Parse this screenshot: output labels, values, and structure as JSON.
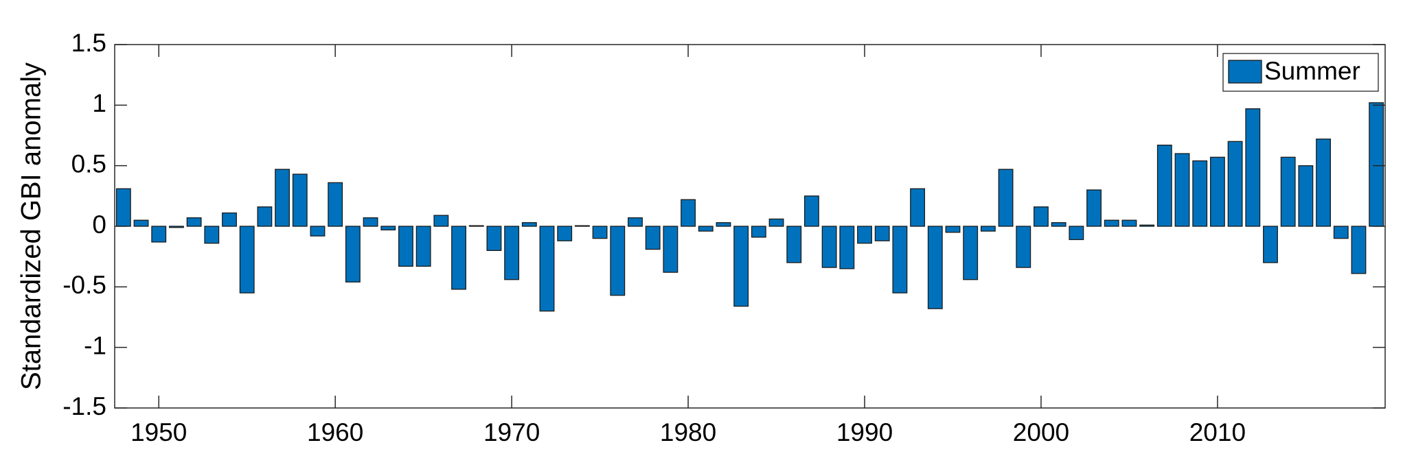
{
  "chart_data": {
    "type": "bar",
    "y_label": "Standardized GBI anomaly",
    "x": [
      1948,
      1949,
      1950,
      1951,
      1952,
      1953,
      1954,
      1955,
      1956,
      1957,
      1958,
      1959,
      1960,
      1961,
      1962,
      1963,
      1964,
      1965,
      1966,
      1967,
      1968,
      1969,
      1970,
      1971,
      1972,
      1973,
      1974,
      1975,
      1976,
      1977,
      1978,
      1979,
      1980,
      1981,
      1982,
      1983,
      1984,
      1985,
      1986,
      1987,
      1988,
      1989,
      1990,
      1991,
      1992,
      1993,
      1994,
      1995,
      1996,
      1997,
      1998,
      1999,
      2000,
      2001,
      2002,
      2003,
      2004,
      2005,
      2006,
      2007,
      2008,
      2009,
      2010,
      2011,
      2012,
      2013,
      2014,
      2015,
      2016,
      2017,
      2018,
      2019
    ],
    "series": [
      {
        "name": "Summer",
        "color": "#0072bd",
        "values": [
          0.31,
          0.05,
          -0.13,
          -0.01,
          0.07,
          -0.14,
          0.11,
          -0.55,
          0.16,
          0.47,
          0.43,
          -0.08,
          0.36,
          -0.46,
          0.07,
          -0.03,
          -0.33,
          -0.33,
          0.09,
          -0.52,
          0.005,
          -0.2,
          -0.44,
          0.03,
          -0.7,
          -0.12,
          0.005,
          -0.1,
          -0.57,
          0.07,
          -0.19,
          -0.38,
          0.22,
          -0.04,
          0.03,
          -0.66,
          -0.09,
          0.06,
          -0.3,
          0.25,
          -0.34,
          -0.35,
          -0.14,
          -0.12,
          -0.55,
          0.31,
          -0.68,
          -0.05,
          -0.44,
          -0.04,
          0.47,
          -0.34,
          0.16,
          0.03,
          -0.11,
          0.3,
          0.05,
          0.05,
          0.01,
          0.67,
          0.6,
          0.54,
          0.57,
          0.7,
          0.97,
          -0.3,
          0.57,
          0.5,
          0.72,
          -0.1,
          -0.39,
          1.02
        ]
      }
    ],
    "xlim": [
      1947.5,
      2019.5
    ],
    "xticks": [
      1950,
      1960,
      1970,
      1980,
      1990,
      2000,
      2010
    ],
    "ylim": [
      -1.5,
      1.5
    ],
    "yticks": [
      -1.5,
      -1,
      -0.5,
      0,
      0.5,
      1,
      1.5
    ],
    "legend": "top-right"
  }
}
